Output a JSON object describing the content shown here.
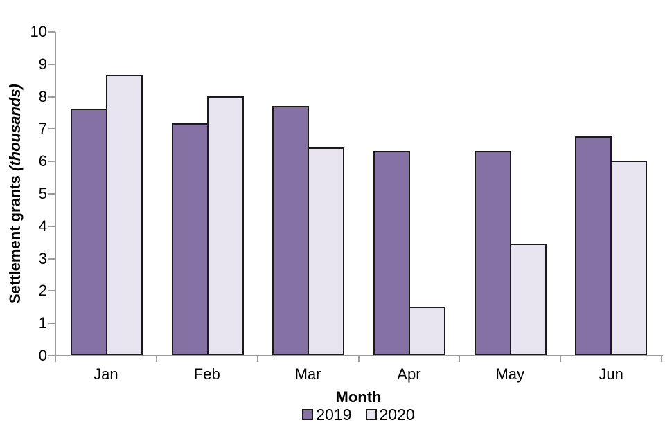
{
  "chart_data": {
    "type": "bar",
    "title": "",
    "categories": [
      "Jan",
      "Feb",
      "Mar",
      "Apr",
      "May",
      "Jun"
    ],
    "series": [
      {
        "name": "2019",
        "color": "#8571A4",
        "values": [
          7.6,
          7.15,
          7.7,
          6.3,
          6.3,
          6.75
        ]
      },
      {
        "name": "2020",
        "color": "#E8E5F1",
        "values": [
          8.65,
          8.0,
          6.4,
          1.5,
          3.45,
          6.0
        ]
      }
    ],
    "xlabel": "Month",
    "ylabel_main": "Settlement grants ",
    "ylabel_unit": "(thousands)",
    "ylim": [
      0,
      10
    ],
    "yticks": [
      0,
      1,
      2,
      3,
      4,
      5,
      6,
      7,
      8,
      9,
      10
    ],
    "grid": false,
    "legend_position": "bottom",
    "bar_border_color": "#1A1A1A",
    "axis_color": "#9C9C9C",
    "background_color": "#FFFFFF"
  }
}
